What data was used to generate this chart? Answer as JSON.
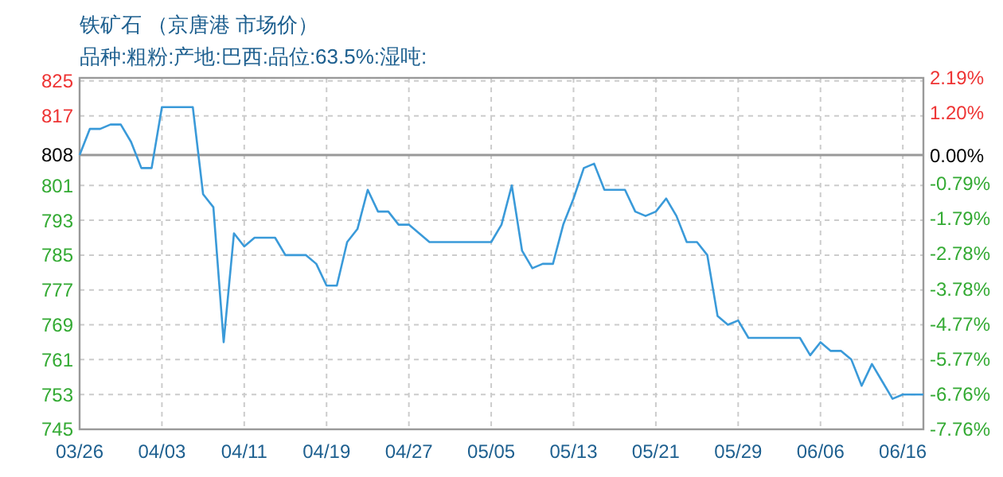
{
  "chart_data": {
    "type": "line",
    "title": "铁矿石 （京唐港 市场价）",
    "subtitle": "品种:粗粉:产地:巴西:品位:63.5%:湿吨:",
    "categories": [
      "03/26",
      null,
      null,
      null,
      null,
      null,
      null,
      null,
      "04/03",
      null,
      null,
      null,
      null,
      null,
      null,
      null,
      "04/11",
      null,
      null,
      null,
      null,
      null,
      null,
      null,
      "04/19",
      null,
      null,
      null,
      null,
      null,
      null,
      null,
      "04/27",
      null,
      null,
      null,
      null,
      null,
      null,
      null,
      "05/05",
      null,
      null,
      null,
      null,
      null,
      null,
      null,
      "05/13",
      null,
      null,
      null,
      null,
      null,
      null,
      null,
      "05/21",
      null,
      null,
      null,
      null,
      null,
      null,
      null,
      "05/29",
      null,
      null,
      null,
      null,
      null,
      null,
      null,
      "06/06",
      null,
      null,
      null,
      null,
      null,
      null,
      null,
      "06/16",
      null,
      null
    ],
    "series": [
      {
        "color": "#3a9ad9",
        "values": [
          808,
          814,
          814,
          815,
          815,
          811,
          805,
          805,
          819,
          819,
          819,
          819,
          799,
          796,
          765,
          790,
          787,
          789,
          789,
          789,
          785,
          785,
          785,
          783,
          778,
          778,
          788,
          791,
          800,
          795,
          795,
          792,
          792,
          790,
          788,
          788,
          788,
          788,
          788,
          788,
          788,
          792,
          801,
          786,
          782,
          783,
          783,
          792,
          798,
          805,
          806,
          800,
          800,
          800,
          795,
          794,
          795,
          798,
          794,
          788,
          788,
          785,
          771,
          769,
          770,
          766,
          766,
          766,
          766,
          766,
          766,
          762,
          765,
          763,
          763,
          761,
          755,
          760,
          756,
          752,
          753,
          753,
          753
        ]
      }
    ],
    "ylim": [
      745,
      825.7
    ],
    "yticks": [
      745,
      753,
      761,
      769,
      777,
      785,
      793,
      801,
      808,
      817,
      825
    ],
    "y2lim": [
      -7.76,
      2.19
    ],
    "y2ticks": [
      {
        "value": -7.76,
        "label": "-7.76%"
      },
      {
        "value": -6.76,
        "label": "-6.76%"
      },
      {
        "value": -5.77,
        "label": "-5.77%"
      },
      {
        "value": -4.77,
        "label": "-4.77%"
      },
      {
        "value": -3.78,
        "label": "-3.78%"
      },
      {
        "value": -2.78,
        "label": "-2.78%"
      },
      {
        "value": -1.79,
        "label": "-1.79%"
      },
      {
        "value": -0.79,
        "label": "-0.79%"
      },
      {
        "value": 0,
        "label": "0.00%"
      },
      {
        "value": 1.2,
        "label": "1.20%"
      },
      {
        "value": 2.19,
        "label": "2.19%"
      }
    ],
    "ref_lines": [
      {
        "axis": "y",
        "value": 808,
        "color": "#999999"
      }
    ],
    "grid": true,
    "marker": "none",
    "line_style": "solid"
  }
}
